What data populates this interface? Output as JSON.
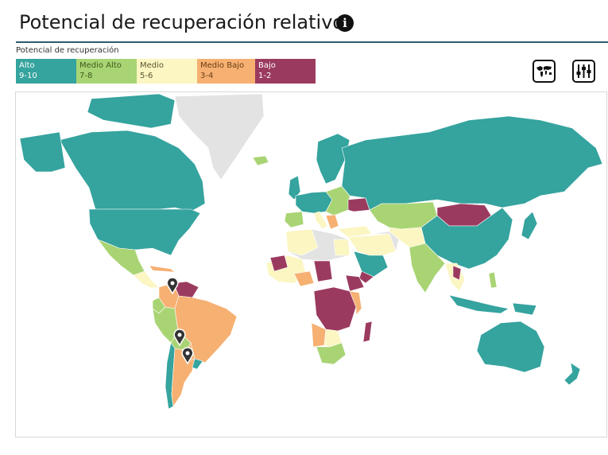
{
  "header": {
    "title": "Potencial de recuperación relativo",
    "info_icon": "info-circle-icon"
  },
  "legend": {
    "title": "Potencial de recuperación",
    "items": [
      {
        "label": "Alto",
        "range": "9-10",
        "color": "#35a39e",
        "text_color": "#ffffff"
      },
      {
        "label": "Medio Alto",
        "range": "7-8",
        "color": "#a9d474",
        "text_color": "#3f5a1a"
      },
      {
        "label": "Medio",
        "range": "5-6",
        "color": "#fbf6c2",
        "text_color": "#5a5532"
      },
      {
        "label": "Medio Bajo",
        "range": "3-4",
        "color": "#f6b072",
        "text_color": "#6b3e12"
      },
      {
        "label": "Bajo",
        "range": "1-2",
        "color": "#9b3a5f",
        "text_color": "#ffffff"
      }
    ]
  },
  "toolbar": {
    "map_button_icon": "world-map-icon",
    "filter_button_icon": "sliders-icon"
  },
  "map": {
    "no_data_color": "#e3e3e3",
    "markers_icon": "map-pin-icon"
  }
}
